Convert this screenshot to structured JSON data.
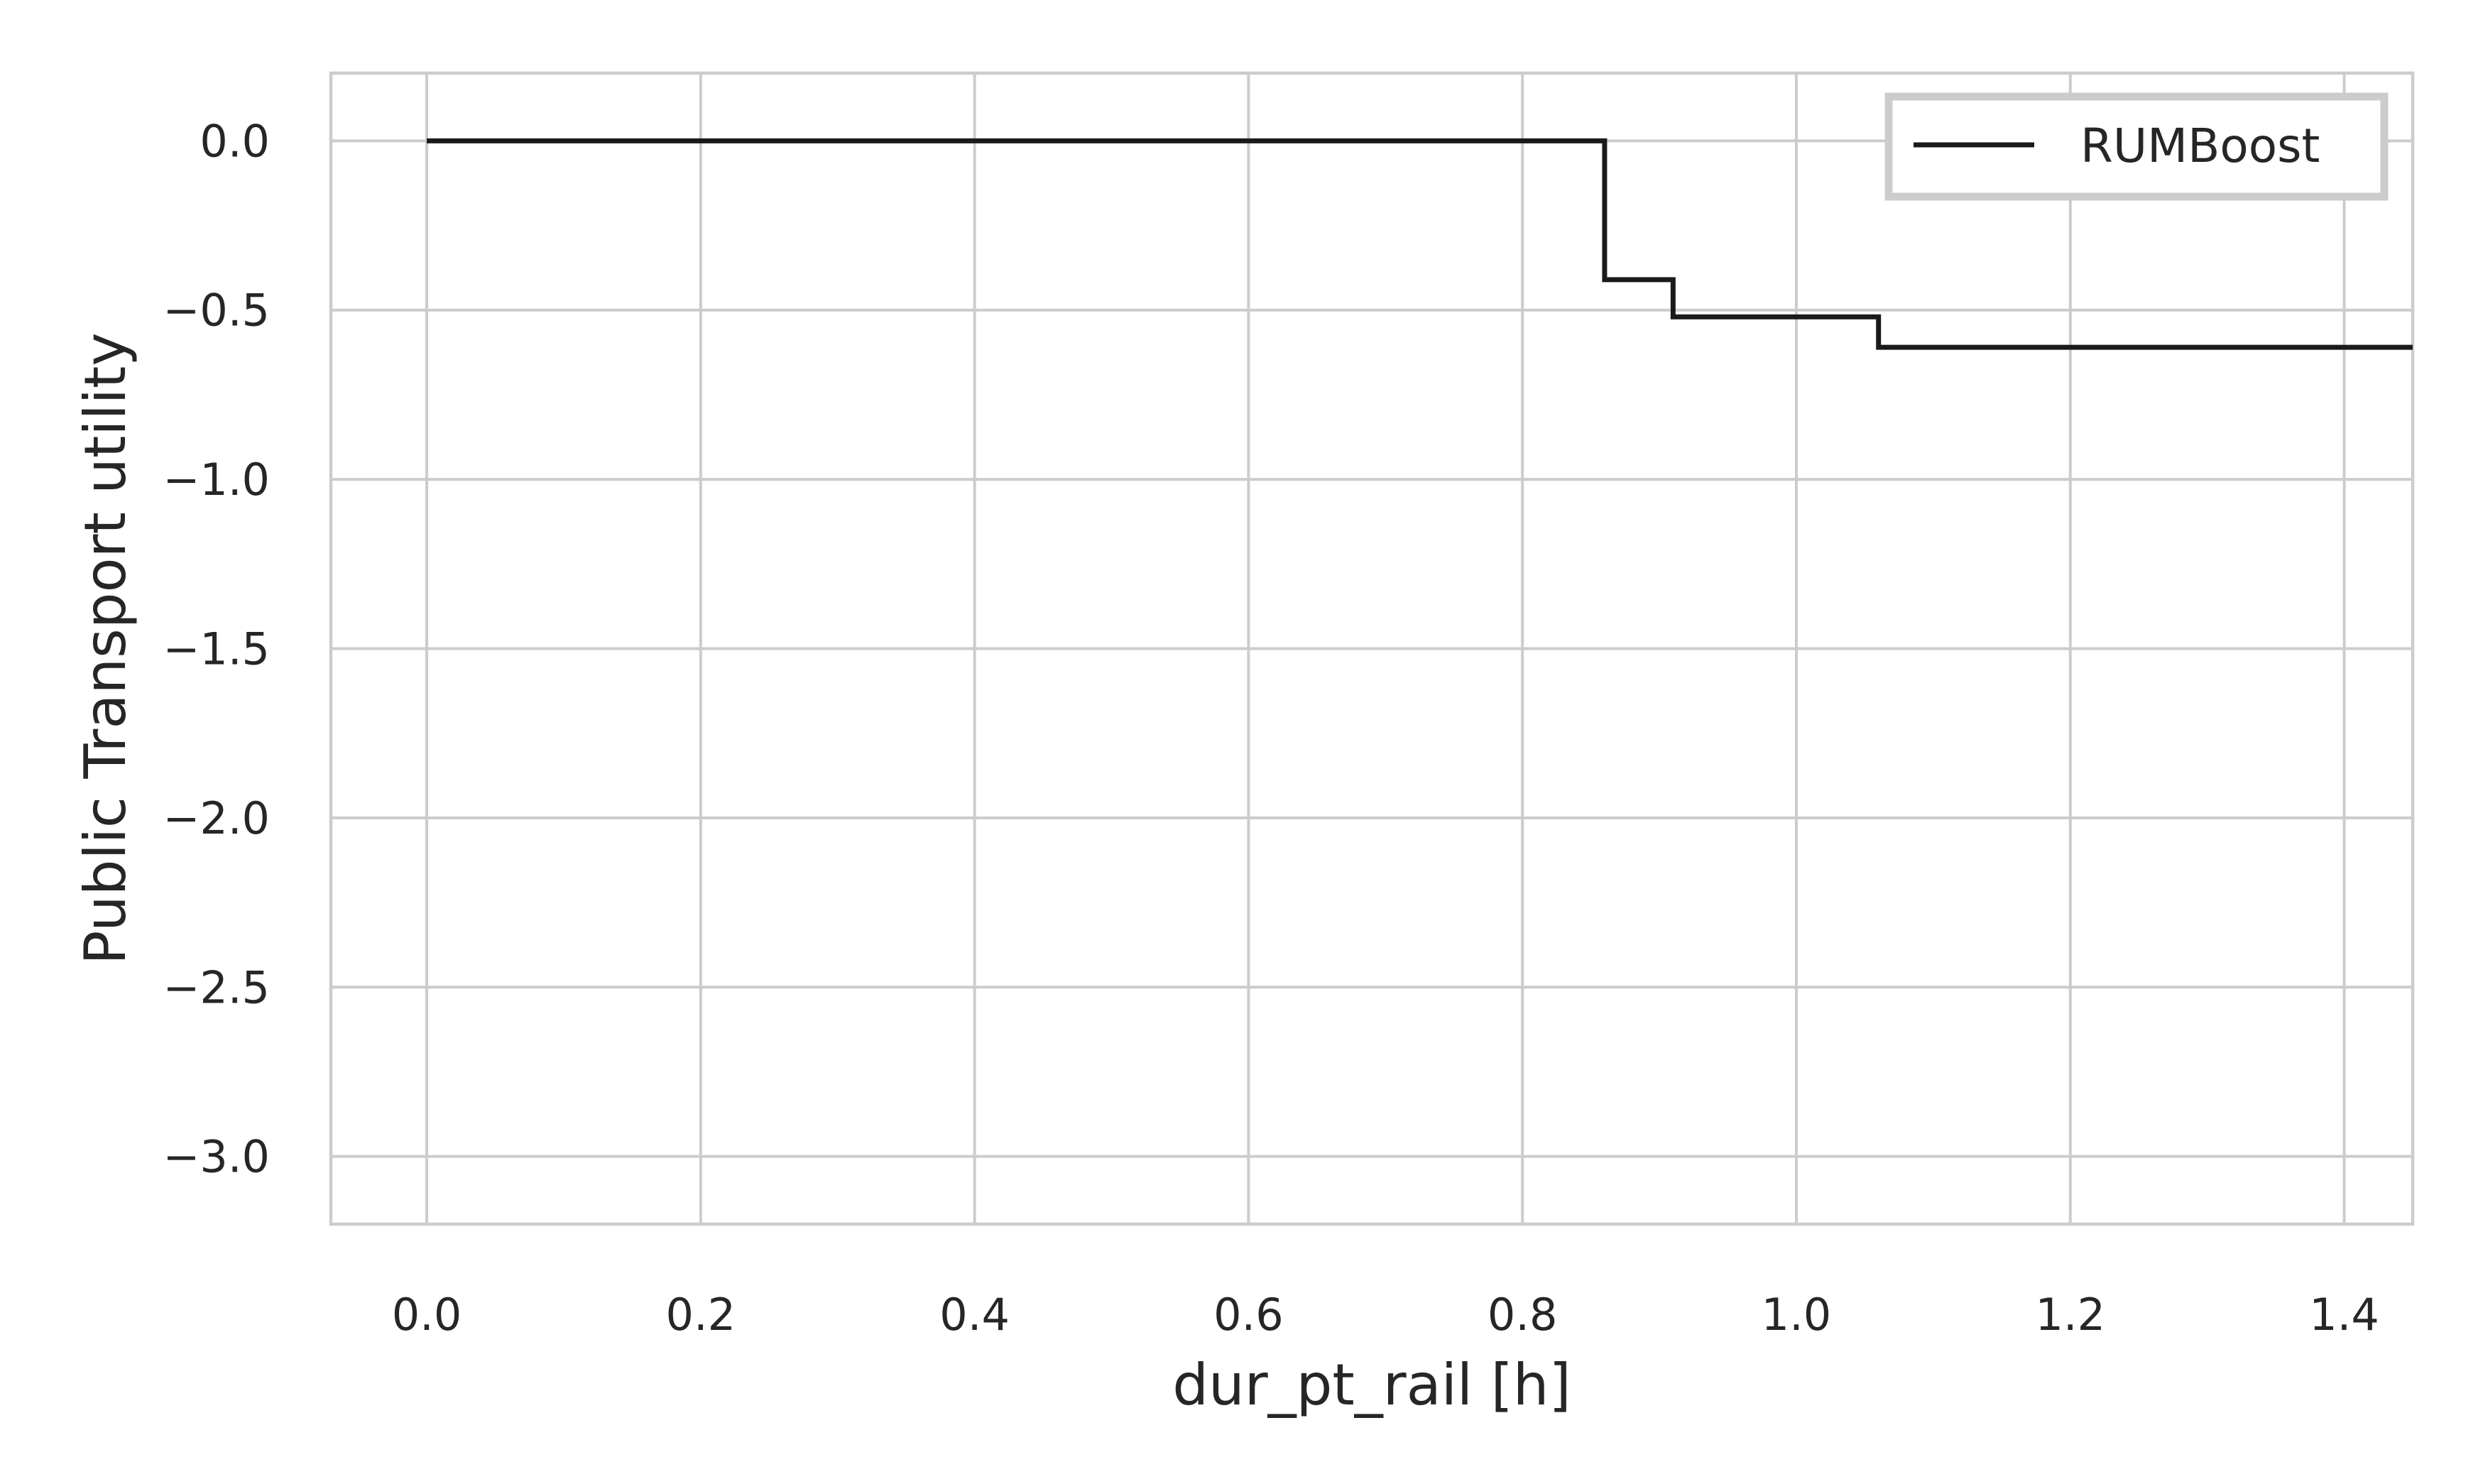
{
  "chart_data": {
    "type": "line",
    "title": "",
    "xlabel": "dur_pt_rail [h]",
    "ylabel": "Public Transport utility",
    "xlim": [
      -0.07,
      1.45
    ],
    "ylim": [
      -3.2,
      0.2
    ],
    "xticks": [
      0.0,
      0.2,
      0.4,
      0.6,
      0.8,
      1.0,
      1.2,
      1.4
    ],
    "xtick_labels": [
      "0.0",
      "0.2",
      "0.4",
      "0.6",
      "0.8",
      "1.0",
      "1.2",
      "1.4"
    ],
    "yticks": [
      0.0,
      -0.5,
      -1.0,
      -1.5,
      -2.0,
      -2.5,
      -3.0
    ],
    "ytick_labels": [
      "0.0",
      "−0.5",
      "−1.0",
      "−1.5",
      "−2.0",
      "−2.5",
      "−3.0"
    ],
    "grid": true,
    "legend_position": "top-right",
    "series": [
      {
        "name": "RUMBoost",
        "color": "#1a1a1a",
        "step": "post",
        "x": [
          0.0,
          0.86,
          0.91,
          1.06,
          1.45
        ],
        "y": [
          0.0,
          -0.41,
          -0.52,
          -0.61,
          -0.61
        ]
      }
    ]
  }
}
